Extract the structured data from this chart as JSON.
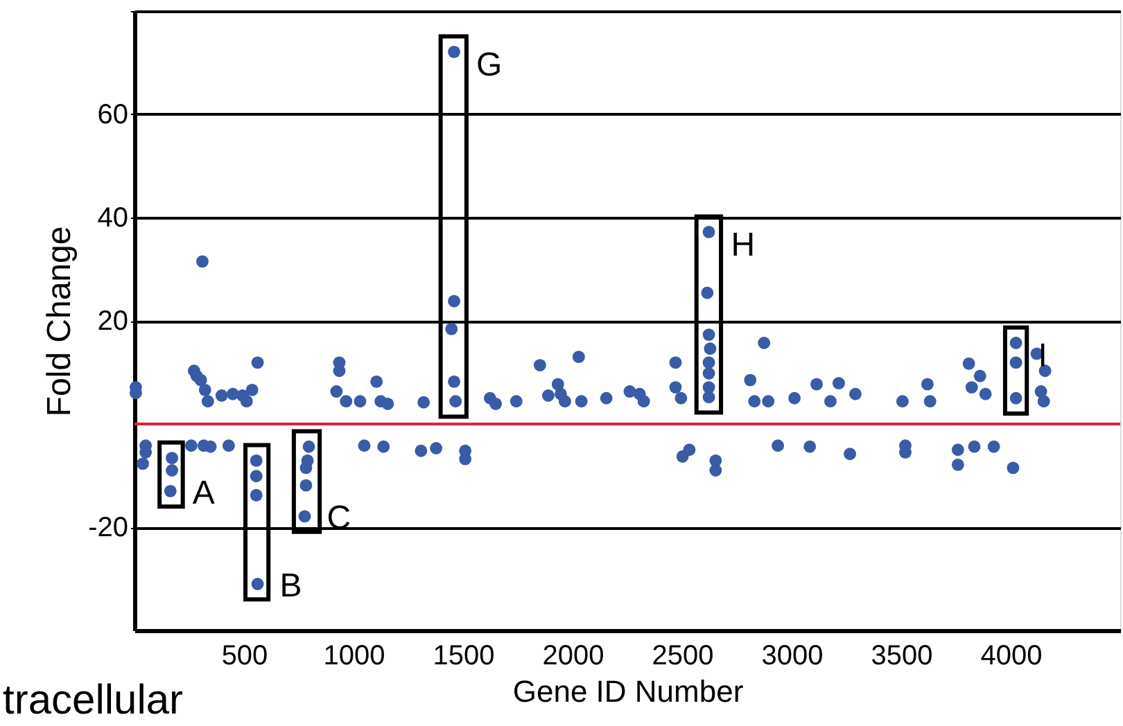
{
  "chart_data": {
    "type": "scatter",
    "xlabel": "Gene ID Number",
    "ylabel": "Fold Change",
    "xlim": [
      0,
      4500
    ],
    "xticks": [
      500,
      1000,
      1500,
      2000,
      2500,
      3000,
      3500,
      4000
    ],
    "ylim": [
      -40,
      80
    ],
    "yticks": [
      -20,
      20,
      40,
      60,
      {
        "value": 80,
        "label": null
      }
    ],
    "grid": "y",
    "ref_lines": [
      {
        "axis": "y",
        "value": 0,
        "label": null,
        "color": "#e8202a"
      }
    ],
    "series": [
      {
        "color": "#3a5ba6",
        "x": [
          6,
          6,
          272,
          284,
          303,
          322,
          335,
          398,
          449,
          493,
          512,
          537,
          562,
          310,
          935,
          935,
          922,
          966,
          1030,
          1105,
          1124,
          1156,
          1320,
          1459,
          1459,
          1447,
          1459,
          1466,
          1623,
          1649,
          1743,
          1851,
          1889,
          1933,
          1965,
          2028,
          1946,
          2040,
          2154,
          2261,
          2306,
          2325,
          2470,
          2470,
          2495,
          2622,
          2615,
          2622,
          2628,
          2622,
          2622,
          2622,
          2622,
          2874,
          2811,
          2830,
          2893,
          3013,
          3114,
          3215,
          3177,
          3291,
          3506,
          3620,
          3632,
          3809,
          3860,
          3822,
          3885,
          4024,
          4024,
          4024,
          4119,
          4157,
          4138,
          4151,
          51,
          51,
          38,
          171,
          171,
          164,
          259,
          316,
          347,
          430,
          556,
          556,
          556,
          562,
          796,
          790,
          783,
          783,
          777,
          1049,
          1137,
          1308,
          1377,
          1510,
          1510,
          2502,
          2533,
          2653,
          2653,
          2937,
          3083,
          3266,
          3519,
          3519,
          3759,
          3759,
          3834,
          3923,
          4011
        ],
        "values": [
          7.1,
          6.0,
          10.3,
          9.3,
          8.5,
          6.6,
          4.4,
          5.5,
          5.8,
          5.5,
          4.4,
          6.6,
          11.9,
          31.5,
          11.9,
          10.3,
          6.3,
          4.4,
          4.4,
          8.2,
          4.4,
          3.9,
          4.2,
          72.1,
          23.8,
          18.4,
          8.2,
          4.4,
          5.0,
          3.9,
          4.4,
          11.4,
          5.5,
          7.7,
          4.4,
          13.0,
          5.8,
          4.4,
          5.0,
          6.3,
          5.8,
          4.4,
          11.9,
          7.1,
          5.0,
          37.2,
          25.4,
          17.3,
          14.6,
          11.9,
          9.8,
          7.1,
          5.2,
          15.7,
          8.5,
          4.4,
          4.4,
          5.0,
          7.7,
          7.9,
          4.4,
          5.8,
          4.4,
          7.7,
          4.4,
          11.7,
          9.3,
          7.1,
          5.8,
          15.7,
          11.9,
          5.0,
          13.6,
          10.3,
          6.3,
          4.4,
          -4.2,
          -5.5,
          -7.7,
          -6.6,
          -9.0,
          -13.0,
          -4.2,
          -4.2,
          -4.4,
          -4.2,
          -7.1,
          -10.1,
          -13.8,
          -31.0,
          -4.4,
          -7.1,
          -8.5,
          -11.9,
          -17.9,
          -4.2,
          -4.4,
          -5.2,
          -4.7,
          -5.2,
          -6.8,
          -6.3,
          -5.0,
          -7.1,
          -9.0,
          -4.2,
          -4.4,
          -5.8,
          -4.2,
          -5.5,
          -5.0,
          -7.9,
          -4.4,
          -4.4,
          -8.5
        ]
      }
    ],
    "annotations": [
      {
        "text": "A",
        "x": 164,
        "y": -13.0
      },
      {
        "text": "B",
        "x": 562,
        "y": -31.0
      },
      {
        "text": "C",
        "x": 777,
        "y": -17.9
      },
      {
        "text": "G",
        "x": 1459,
        "y": 72.1
      },
      {
        "text": "H",
        "x": 2622,
        "y": 37.2
      },
      {
        "text": "I",
        "x": 4024,
        "y": 15.7
      },
      "tracellular"
    ]
  }
}
